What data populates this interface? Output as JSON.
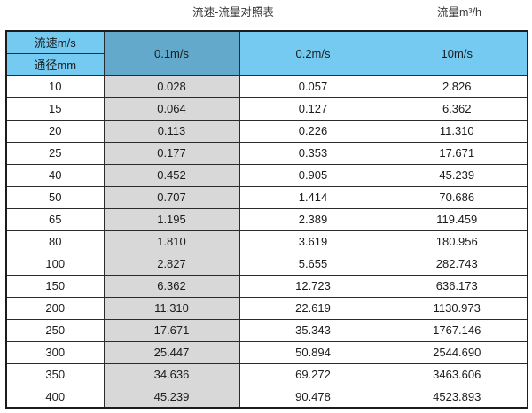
{
  "titles": {
    "left": "流速-流量对照表",
    "right": "流量m³/h"
  },
  "colors": {
    "header_blue": "#74CAF1",
    "header_dark_blue": "#63A9CB",
    "highlight_column_gray": "#D8D8D8",
    "border": "#2b2b2b",
    "background": "#ffffff"
  },
  "table": {
    "corner": {
      "top": "流速m/s",
      "bottom": "通径mm"
    },
    "velocity_columns": [
      "0.1m/s",
      "0.2m/s",
      "10m/s"
    ],
    "rows": [
      {
        "diameter": "10",
        "values": [
          "0.028",
          "0.057",
          "2.826"
        ]
      },
      {
        "diameter": "15",
        "values": [
          "0.064",
          "0.127",
          "6.362"
        ]
      },
      {
        "diameter": "20",
        "values": [
          "0.113",
          "0.226",
          "11.310"
        ]
      },
      {
        "diameter": "25",
        "values": [
          "0.177",
          "0.353",
          "17.671"
        ]
      },
      {
        "diameter": "40",
        "values": [
          "0.452",
          "0.905",
          "45.239"
        ]
      },
      {
        "diameter": "50",
        "values": [
          "0.707",
          "1.414",
          "70.686"
        ]
      },
      {
        "diameter": "65",
        "values": [
          "1.195",
          "2.389",
          "119.459"
        ]
      },
      {
        "diameter": "80",
        "values": [
          "1.810",
          "3.619",
          "180.956"
        ]
      },
      {
        "diameter": "100",
        "values": [
          "2.827",
          "5.655",
          "282.743"
        ]
      },
      {
        "diameter": "150",
        "values": [
          "6.362",
          "12.723",
          "636.173"
        ]
      },
      {
        "diameter": "200",
        "values": [
          "11.310",
          "22.619",
          "1130.973"
        ]
      },
      {
        "diameter": "250",
        "values": [
          "17.671",
          "35.343",
          "1767.146"
        ]
      },
      {
        "diameter": "300",
        "values": [
          "25.447",
          "50.894",
          "2544.690"
        ]
      },
      {
        "diameter": "350",
        "values": [
          "34.636",
          "69.272",
          "3463.606"
        ]
      },
      {
        "diameter": "400",
        "values": [
          "45.239",
          "90.478",
          "4523.893"
        ]
      }
    ]
  },
  "chart_data": {
    "type": "table",
    "title": "流速-流量对照表",
    "unit_label": "流量m³/h",
    "row_header": [
      "流速m/s",
      "通径mm"
    ],
    "columns": [
      "0.1m/s",
      "0.2m/s",
      "10m/s"
    ],
    "diameters_mm": [
      10,
      15,
      20,
      25,
      40,
      50,
      65,
      80,
      100,
      150,
      200,
      250,
      300,
      350,
      400
    ],
    "series": [
      {
        "name": "0.1m/s",
        "values": [
          0.028,
          0.064,
          0.113,
          0.177,
          0.452,
          0.707,
          1.195,
          1.81,
          2.827,
          6.362,
          11.31,
          17.671,
          25.447,
          34.636,
          45.239
        ]
      },
      {
        "name": "0.2m/s",
        "values": [
          0.057,
          0.127,
          0.226,
          0.353,
          0.905,
          1.414,
          2.389,
          3.619,
          5.655,
          12.723,
          22.619,
          35.343,
          50.894,
          69.272,
          90.478
        ]
      },
      {
        "name": "10m/s",
        "values": [
          2.826,
          6.362,
          11.31,
          17.671,
          45.239,
          70.686,
          119.459,
          180.956,
          282.743,
          636.173,
          1130.973,
          1767.146,
          2544.69,
          3463.606,
          4523.893
        ]
      }
    ]
  }
}
